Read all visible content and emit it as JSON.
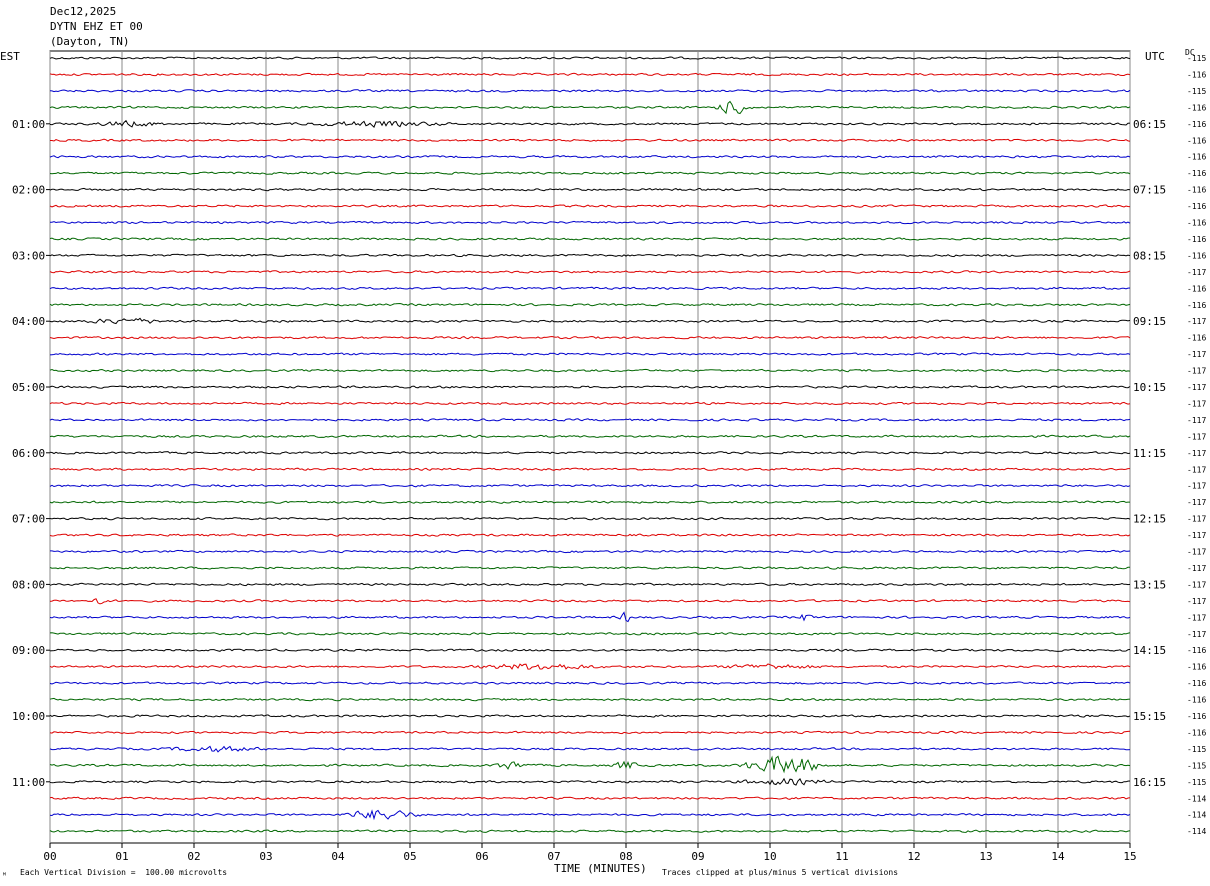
{
  "header": {
    "date": "Dec12,2025",
    "station": "DYTN EHZ ET 00",
    "location": "(Dayton, TN)"
  },
  "axis": {
    "left_tz": "EST",
    "right_tz": "UTC",
    "dc_label": "DC",
    "xlabel": "TIME (MINUTES)",
    "footer_left": "Each Vertical Division =  100.00 microvolts",
    "footer_right": "Traces clipped at plus/minus 5 vertical divisions",
    "corner_mark": "ᴹ"
  },
  "colors": {
    "trace_cycle": [
      "#000000",
      "#dd0000",
      "#0000cc",
      "#006600"
    ],
    "grid": "#888888"
  },
  "chart_data": {
    "type": "line",
    "title": "DYTN EHZ ET 00",
    "x": {
      "ticks": [
        "00",
        "01",
        "02",
        "03",
        "04",
        "05",
        "06",
        "07",
        "08",
        "09",
        "10",
        "11",
        "12",
        "13",
        "14",
        "15"
      ],
      "range": [
        0,
        15
      ],
      "unit": "minutes"
    },
    "scale_microvolts_per_division": 100.0,
    "clip_divisions": 5,
    "trace_count": 48,
    "est_hour_labels": [
      "01:00",
      "02:00",
      "03:00",
      "04:00",
      "05:00",
      "06:00",
      "07:00",
      "08:00",
      "09:00",
      "10:00",
      "11:00"
    ],
    "utc_hour_labels": [
      "06:15",
      "07:15",
      "08:15",
      "09:15",
      "10:15",
      "11:15",
      "12:15",
      "13:15",
      "14:15",
      "15:15",
      "16:15"
    ],
    "dc_offsets": [
      "-115",
      "-116",
      "-115",
      "-116",
      "-116",
      "-116",
      "-116",
      "-116",
      "-116",
      "-116",
      "-116",
      "-116",
      "-116",
      "-117",
      "-116",
      "-116",
      "-117",
      "-116",
      "-117",
      "-117",
      "-117",
      "-117",
      "-117",
      "-117",
      "-117",
      "-117",
      "-117",
      "-117",
      "-117",
      "-117",
      "-117",
      "-117",
      "-117",
      "-117",
      "-117",
      "-117",
      "-116",
      "-116",
      "-116",
      "-116",
      "-116",
      "-116",
      "-115",
      "-115",
      "-115",
      "-114",
      "-114",
      "-114"
    ],
    "events": [
      {
        "trace": 3,
        "minute": 9.5,
        "amplitude": 1.6,
        "width": 0.3
      },
      {
        "trace": 4,
        "minute": 4.5,
        "amplitude": 0.5,
        "width": 1.2
      },
      {
        "trace": 4,
        "minute": 1.1,
        "amplitude": 0.5,
        "width": 0.6
      },
      {
        "trace": 16,
        "minute": 1.1,
        "amplitude": 0.5,
        "width": 0.8
      },
      {
        "trace": 33,
        "minute": 0.7,
        "amplitude": 1.4,
        "width": 0.1
      },
      {
        "trace": 34,
        "minute": 8.0,
        "amplitude": 1.2,
        "width": 0.1
      },
      {
        "trace": 34,
        "minute": 10.5,
        "amplitude": 1.0,
        "width": 0.1
      },
      {
        "trace": 37,
        "minute": 6.8,
        "amplitude": 0.7,
        "width": 1.0
      },
      {
        "trace": 37,
        "minute": 10.0,
        "amplitude": 0.5,
        "width": 0.8
      },
      {
        "trace": 42,
        "minute": 2.3,
        "amplitude": 0.5,
        "width": 0.8
      },
      {
        "trace": 43,
        "minute": 6.4,
        "amplitude": 0.8,
        "width": 0.3
      },
      {
        "trace": 43,
        "minute": 8.0,
        "amplitude": 1.0,
        "width": 0.2
      },
      {
        "trace": 43,
        "minute": 10.2,
        "amplitude": 2.2,
        "width": 0.7
      },
      {
        "trace": 44,
        "minute": 10.2,
        "amplitude": 0.6,
        "width": 0.8
      },
      {
        "trace": 46,
        "minute": 4.6,
        "amplitude": 1.2,
        "width": 0.6
      }
    ]
  }
}
